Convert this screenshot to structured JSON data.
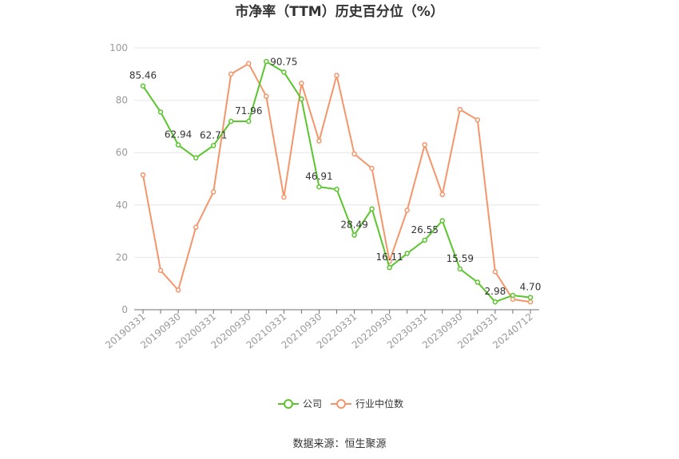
{
  "chart_data": {
    "type": "line",
    "title": "市净率（TTM）历史百分位（%）",
    "ylim": [
      0,
      100
    ],
    "yticks": [
      0,
      20,
      40,
      60,
      80,
      100
    ],
    "x": [
      "20190331",
      "20190630",
      "20190930",
      "20191231",
      "20200331",
      "20200630",
      "20200930",
      "20201231",
      "20210331",
      "20210630",
      "20210930",
      "20211231",
      "20220331",
      "20220630",
      "20220930",
      "20221231",
      "20230331",
      "20230630",
      "20230930",
      "20231231",
      "20240331",
      "20240630",
      "20240712"
    ],
    "x_tick_labels": [
      "20190331",
      "20190930",
      "20200331",
      "20200930",
      "20210331",
      "20210930",
      "20220331",
      "20220930",
      "20230331",
      "20230930",
      "20240331",
      "20240712"
    ],
    "grid": true,
    "legend_position": "bottom-center",
    "series": [
      {
        "name": "公司",
        "color": "#5ac52d",
        "values": [
          85.46,
          75.5,
          62.94,
          58.0,
          62.71,
          71.96,
          71.96,
          94.8,
          90.75,
          80.5,
          46.91,
          46.0,
          28.49,
          38.5,
          16.11,
          21.5,
          26.55,
          34.0,
          15.59,
          10.5,
          2.98,
          5.5,
          4.7
        ],
        "labels": {
          "0": "85.46",
          "2": "62.94",
          "4": "62.71",
          "6": "71.96",
          "8": "90.75",
          "10": "46.91",
          "12": "28.49",
          "14": "16.11",
          "16": "26.55",
          "18": "15.59",
          "20": "2.98",
          "22": "4.70"
        }
      },
      {
        "name": "行业中位数",
        "color": "#f5956a",
        "values": [
          51.5,
          15.0,
          7.5,
          31.5,
          45.0,
          90.0,
          94.0,
          81.5,
          43.0,
          86.5,
          64.5,
          89.5,
          59.5,
          54.0,
          18.5,
          38.0,
          63.0,
          44.0,
          76.5,
          72.5,
          14.5,
          4.0,
          3.0
        ]
      }
    ]
  },
  "footer": {
    "source": "数据来源：恒生聚源"
  }
}
